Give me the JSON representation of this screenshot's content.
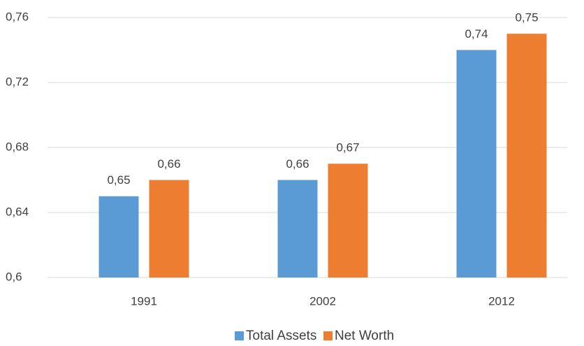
{
  "chart_data": {
    "type": "bar",
    "categories": [
      "1991",
      "2002",
      "2012"
    ],
    "series": [
      {
        "name": "Total Assets",
        "color": "#5b9bd5",
        "values": [
          0.65,
          0.66,
          0.74
        ],
        "value_labels": [
          "0,65",
          "0,66",
          "0,74"
        ]
      },
      {
        "name": "Net Worth",
        "color": "#ed7d31",
        "values": [
          0.66,
          0.67,
          0.75
        ],
        "value_labels": [
          "0,66",
          "0,67",
          "0,75"
        ]
      }
    ],
    "ylim": [
      0.6,
      0.76
    ],
    "yticks": [
      {
        "value": 0.6,
        "label": "0,6"
      },
      {
        "value": 0.64,
        "label": "0,64"
      },
      {
        "value": 0.68,
        "label": "0,68"
      },
      {
        "value": 0.72,
        "label": "0,72"
      },
      {
        "value": 0.76,
        "label": "0,76"
      }
    ],
    "grid": true,
    "legend": "bottom"
  }
}
